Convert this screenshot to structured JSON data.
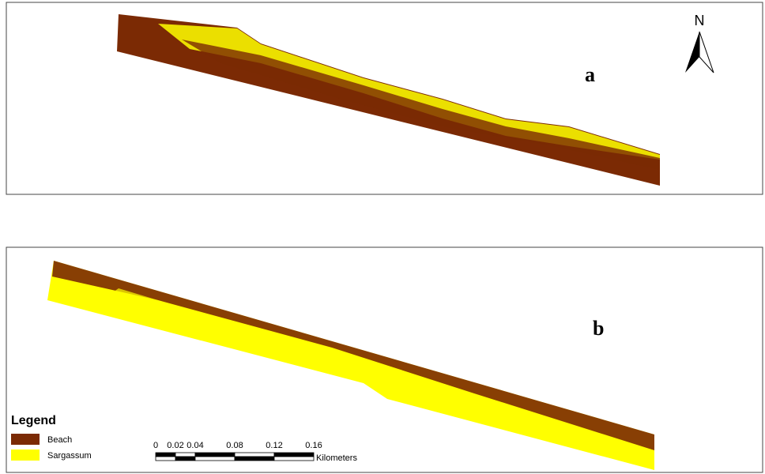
{
  "panels": [
    {
      "label": "a"
    },
    {
      "label": "b"
    }
  ],
  "north_arrow": {
    "label": "N"
  },
  "legend": {
    "title": "Legend",
    "items": [
      {
        "label": "Beach",
        "color": "#7b2a04"
      },
      {
        "label": "Sargassum",
        "color": "#ffff00"
      }
    ]
  },
  "scale_bar": {
    "ticks": [
      0,
      0.02,
      0.04,
      0.08,
      0.12,
      0.16
    ],
    "unit": "Kilometers"
  }
}
